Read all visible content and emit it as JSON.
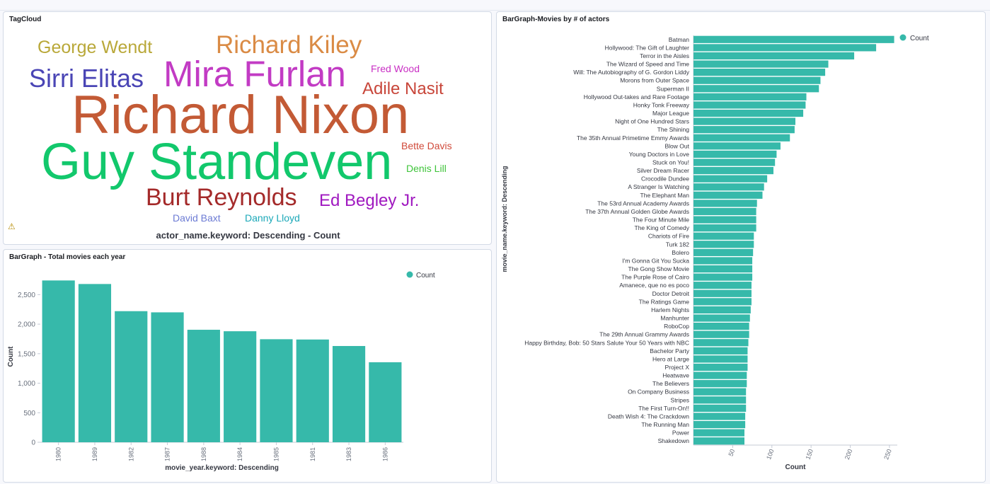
{
  "tagcloud": {
    "title": "TagCloud",
    "caption": "actor_name.keyword: Descending - Count",
    "tags": [
      {
        "text": "George Wendt",
        "color": "#b9a839"
      },
      {
        "text": "Richard Kiley",
        "color": "#da8b45"
      },
      {
        "text": "Sirri Elitas",
        "color": "#4a45b5"
      },
      {
        "text": "Mira Furlan",
        "color": "#c23bc4"
      },
      {
        "text": "Fred Wood",
        "color": "#c930c4"
      },
      {
        "text": "Adile Nasit",
        "color": "#c8463a"
      },
      {
        "text": "Richard Nixon",
        "color": "#c35a35"
      },
      {
        "text": "Guy Standeven",
        "color": "#12c86c"
      },
      {
        "text": "Bette Davis",
        "color": "#d04a3a"
      },
      {
        "text": "Denis Lill",
        "color": "#3fc43a"
      },
      {
        "text": "Burt Reynolds",
        "color": "#a42a2a"
      },
      {
        "text": "Ed Begley Jr.",
        "color": "#a019c0"
      },
      {
        "text": "David Baxt",
        "color": "#6c7bd4"
      },
      {
        "text": "Danny Lloyd",
        "color": "#1aa8b8"
      }
    ]
  },
  "chart_data": [
    {
      "type": "bar",
      "title": "BarGraph - Total movies each year",
      "xlabel": "movie_year.keyword: Descending",
      "ylabel": "Count",
      "legend": "top-right",
      "series": [
        {
          "name": "Count",
          "values": [
            2740,
            2680,
            2220,
            2200,
            1905,
            1880,
            1745,
            1740,
            1630,
            1355
          ]
        }
      ],
      "categories": [
        "1980",
        "1989",
        "1982",
        "1987",
        "1988",
        "1984",
        "1985",
        "1981",
        "1983",
        "1986"
      ],
      "ylim": [
        0,
        2900
      ],
      "yticks": [
        0,
        500,
        1000,
        1500,
        2000,
        2500
      ],
      "ytick_labels": [
        "0",
        "500",
        "1,000",
        "1,500",
        "2,000",
        "2,500"
      ],
      "color": "#36b9aa"
    },
    {
      "type": "bar",
      "orientation": "horizontal",
      "title": "BarGraph-Movies by # of actors",
      "xlabel": "Count",
      "ylabel": "movie_name.keyword: Descending",
      "legend": "top-right",
      "series": [
        {
          "name": "Count",
          "values": [
            256,
            233,
            205,
            172,
            168,
            162,
            160,
            144,
            143,
            140,
            130,
            129,
            123,
            111,
            106,
            104,
            102,
            94,
            90,
            88,
            81,
            80,
            80,
            80,
            77,
            77,
            76,
            75,
            75,
            75,
            74,
            74,
            74,
            73,
            72,
            71,
            71,
            70,
            69,
            69,
            69,
            68,
            68,
            67,
            67,
            67,
            66,
            66,
            65,
            65
          ]
        }
      ],
      "categories": [
        "Batman",
        "Hollywood: The Gift of Laughter",
        "Terror in the Aisles",
        "The Wizard of Speed and Time",
        "Will: The Autobiography of G. Gordon Liddy",
        "Morons from Outer Space",
        "Superman II",
        "Hollywood Out-takes and Rare Footage",
        "Honky Tonk Freeway",
        "Major League",
        "Night of One Hundred Stars",
        "The Shining",
        "The 35th Annual Primetime Emmy Awards",
        "Blow Out",
        "Young Doctors in Love",
        "Stuck on You!",
        "Silver Dream Racer",
        "Crocodile Dundee",
        "A Stranger Is Watching",
        "The Elephant Man",
        "The 53rd Annual Academy Awards",
        "The 37th Annual Golden Globe Awards",
        "The Four Minute Mile",
        "The King of Comedy",
        "Chariots of Fire",
        "Turk 182",
        "Bolero",
        "I'm Gonna Git You Sucka",
        "The Gong Show Movie",
        "The Purple Rose of Cairo",
        "Amanece, que no es poco",
        "Doctor Detroit",
        "The Ratings Game",
        "Harlem Nights",
        "Manhunter",
        "RoboCop",
        "The 29th Annual Grammy Awards",
        "Happy Birthday, Bob: 50 Stars Salute Your 50 Years with NBC",
        "Bachelor Party",
        "Hero at Large",
        "Project X",
        "Heatwave",
        "The Believers",
        "On Company Business",
        "Stripes",
        "The First Turn-On!!",
        "Death Wish 4: The Crackdown",
        "The Running Man",
        "Power",
        "Shakedown"
      ],
      "xlim": [
        0,
        260
      ],
      "xticks": [
        50,
        100,
        150,
        200,
        250
      ],
      "color": "#36b9aa"
    }
  ]
}
